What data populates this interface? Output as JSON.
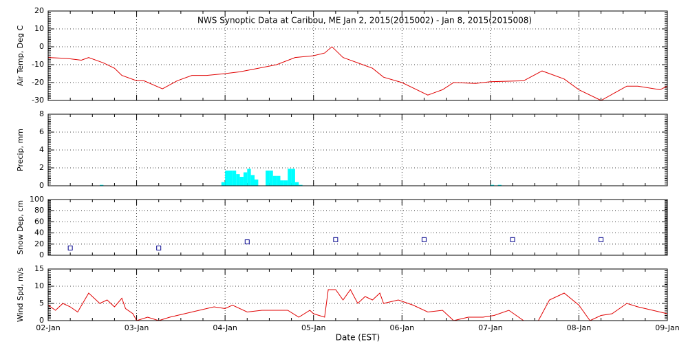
{
  "chart_data": [
    {
      "type": "line",
      "title": "NWS Synoptic Data at Caribou, ME   Jan  2, 2015(2015002) - Jan  8, 2015(2015008)",
      "ylabel": "Air Temp, Deg C",
      "color": "#e00000",
      "grid": true,
      "ylim": [
        -30,
        20
      ],
      "yticks": [
        -30,
        -20,
        -10,
        0,
        10,
        20
      ],
      "x": [
        0,
        5,
        9,
        11,
        15,
        18,
        20,
        24,
        26,
        31,
        35,
        39,
        43,
        48,
        52,
        57,
        62,
        67,
        72,
        75,
        77,
        78,
        80,
        84,
        88,
        91,
        96,
        103,
        107,
        110,
        116,
        120,
        129,
        134,
        140,
        144,
        150,
        157,
        160,
        166,
        168
      ],
      "values": [
        -6,
        -6.5,
        -7.5,
        -6,
        -9,
        -12,
        -16,
        -19,
        -19,
        -23.5,
        -19,
        -16,
        -16,
        -15,
        -14,
        -12,
        -10,
        -6,
        -5,
        -3.5,
        0,
        -2,
        -6,
        -9,
        -12,
        -17,
        -20,
        -27,
        -24,
        -20,
        -20.5,
        -19.5,
        -19,
        -13.5,
        -18,
        -24,
        -30,
        -22,
        -22,
        -24,
        -22
      ]
    },
    {
      "type": "bar",
      "ylabel": "Precip, mm",
      "color": "#00ffff",
      "grid": true,
      "ylim": [
        0,
        8
      ],
      "yticks": [
        0,
        2,
        4,
        6,
        8
      ],
      "x": [
        14,
        47,
        48,
        49,
        50,
        51,
        52,
        53,
        54,
        55,
        56,
        59,
        60,
        61,
        62,
        63,
        64,
        65,
        66,
        67,
        68,
        120,
        122
      ],
      "values": [
        0.1,
        0.4,
        1.7,
        1.7,
        1.7,
        1.3,
        1.0,
        1.5,
        1.9,
        1.2,
        0.7,
        1.7,
        1.7,
        1.1,
        1.1,
        0.6,
        0.6,
        1.9,
        1.9,
        0.4,
        0.1,
        0.1,
        0.1
      ]
    },
    {
      "type": "scatter",
      "ylabel": "Snow Dep, cm",
      "color": "#00008b",
      "marker": "square",
      "grid": true,
      "ylim": [
        0,
        100
      ],
      "yticks": [
        0,
        20,
        40,
        60,
        80,
        100
      ],
      "x": [
        6,
        30,
        54,
        78,
        102,
        126,
        150
      ],
      "values": [
        13,
        13,
        24,
        28,
        28,
        28,
        28
      ]
    },
    {
      "type": "line",
      "ylabel": "Wind Spd, m/s",
      "xlabel": "Date (EST)",
      "color": "#e00000",
      "grid": true,
      "ylim": [
        0,
        15
      ],
      "yticks": [
        0,
        5,
        10,
        15
      ],
      "xlim": [
        0,
        168
      ],
      "xticks": [
        {
          "value": 0,
          "label": "02-Jan"
        },
        {
          "value": 24,
          "label": "03-Jan"
        },
        {
          "value": 48,
          "label": "04-Jan"
        },
        {
          "value": 72,
          "label": "05-Jan"
        },
        {
          "value": 96,
          "label": "06-Jan"
        },
        {
          "value": 120,
          "label": "07-Jan"
        },
        {
          "value": 144,
          "label": "08-Jan"
        },
        {
          "value": 168,
          "label": "09-Jan"
        }
      ],
      "x": [
        0,
        2,
        4,
        6,
        8,
        11,
        14,
        16,
        18,
        20,
        21,
        23,
        24,
        27,
        30,
        33,
        35,
        41,
        45,
        48,
        50,
        54,
        58,
        65,
        68,
        71,
        72,
        75,
        76,
        78,
        80,
        82,
        84,
        86,
        88,
        90,
        91,
        95,
        99,
        103,
        107,
        110,
        114,
        118,
        121,
        125,
        129,
        133,
        136,
        140,
        144,
        147,
        150,
        153,
        157,
        160,
        164,
        168
      ],
      "values": [
        4.5,
        3,
        5,
        4,
        2.5,
        8,
        5,
        6,
        4,
        6.5,
        3.5,
        2,
        0,
        1,
        0,
        1,
        1.5,
        3,
        4,
        3.5,
        4.5,
        2.5,
        3,
        3,
        1,
        3,
        2,
        1,
        9,
        9,
        6,
        9,
        5,
        7,
        6,
        8,
        5,
        6,
        4.5,
        2.5,
        3,
        0,
        1,
        1,
        1.5,
        3,
        0,
        0,
        6,
        8,
        4.5,
        0,
        1.5,
        2,
        5,
        4,
        3,
        2
      ]
    }
  ]
}
